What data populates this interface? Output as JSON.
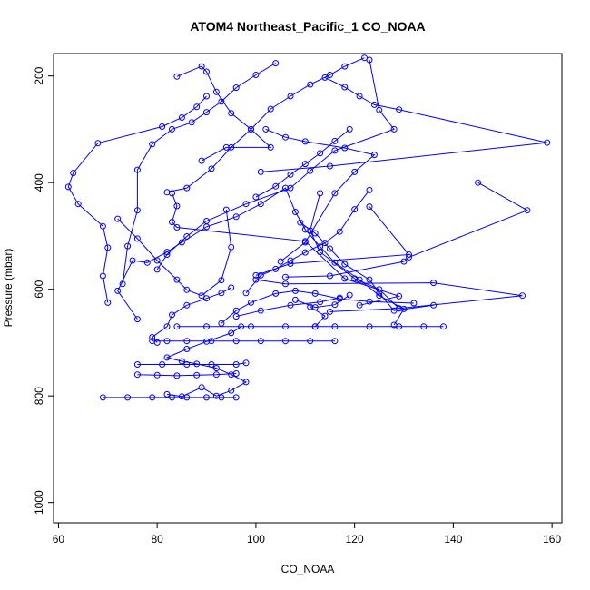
{
  "chart_data": {
    "type": "line",
    "title": "ATOM4 Northeast_Pacific_1 CO_NOAA",
    "xlabel": "CO_NOAA",
    "ylabel": "Pressure (mbar)",
    "xlim": [
      59,
      162
    ],
    "ylim": [
      1038,
      158
    ],
    "y_reversed": true,
    "xticks": [
      60,
      80,
      100,
      120,
      140,
      160
    ],
    "yticks": [
      200,
      400,
      600,
      800,
      1000
    ],
    "grid": false,
    "color": "#0000ff",
    "series": [
      {
        "points": [
          [
            69,
            803
          ],
          [
            74,
            803
          ],
          [
            79,
            803
          ],
          [
            83,
            803
          ],
          [
            86,
            803
          ],
          [
            90,
            803
          ],
          [
            93,
            803
          ],
          [
            96,
            803
          ]
        ]
      },
      {
        "points": [
          [
            82,
            797
          ],
          [
            85,
            801
          ],
          [
            89,
            784
          ],
          [
            92,
            800
          ],
          [
            95,
            790
          ],
          [
            98,
            774
          ],
          [
            95,
            760
          ],
          [
            92,
            748
          ],
          [
            88,
            740
          ],
          [
            85,
            735
          ],
          [
            82,
            728
          ],
          [
            86,
            712
          ],
          [
            90,
            698
          ],
          [
            95,
            682
          ],
          [
            97,
            670
          ]
        ]
      },
      {
        "points": [
          [
            76,
            760
          ],
          [
            80,
            761
          ],
          [
            84,
            762
          ],
          [
            88,
            761
          ],
          [
            92,
            760
          ],
          [
            96,
            758
          ]
        ]
      },
      {
        "points": [
          [
            76,
            741
          ],
          [
            81,
            741
          ],
          [
            86,
            741
          ],
          [
            91,
            741
          ],
          [
            96,
            741
          ],
          [
            98,
            738
          ]
        ]
      },
      {
        "points": [
          [
            79,
            697
          ],
          [
            82,
            697
          ],
          [
            86,
            697
          ],
          [
            91,
            697
          ],
          [
            96,
            697
          ],
          [
            101,
            697
          ],
          [
            106,
            697
          ],
          [
            111,
            697
          ],
          [
            116,
            697
          ]
        ]
      },
      {
        "points": [
          [
            84,
            670
          ],
          [
            90,
            670
          ],
          [
            99,
            670
          ],
          [
            106,
            670
          ],
          [
            112,
            670
          ],
          [
            116,
            670
          ],
          [
            123,
            670
          ],
          [
            129,
            670
          ],
          [
            134,
            670
          ],
          [
            138,
            670
          ]
        ]
      },
      {
        "points": [
          [
            80,
            700
          ],
          [
            79,
            690
          ],
          [
            82,
            670
          ],
          [
            83,
            648
          ],
          [
            86,
            630
          ],
          [
            90,
            617
          ],
          [
            93,
            607
          ],
          [
            95,
            597
          ]
        ]
      },
      {
        "points": [
          [
            70,
            625
          ],
          [
            69,
            575
          ],
          [
            70,
            522
          ],
          [
            69,
            482
          ],
          [
            64,
            440
          ],
          [
            62,
            408
          ],
          [
            63,
            382
          ],
          [
            68,
            326
          ],
          [
            81,
            295
          ],
          [
            85,
            278
          ],
          [
            88,
            258
          ],
          [
            90,
            238
          ]
        ]
      },
      {
        "points": [
          [
            73,
            590
          ],
          [
            74,
            519
          ],
          [
            76,
            452
          ],
          [
            76,
            376
          ],
          [
            79,
            328
          ],
          [
            83,
            300
          ],
          [
            87,
            287
          ],
          [
            90,
            268
          ],
          [
            93,
            248
          ],
          [
            96,
            222
          ],
          [
            100,
            198
          ],
          [
            104,
            176
          ]
        ]
      },
      {
        "points": [
          [
            76,
            656
          ],
          [
            72,
            603
          ],
          [
            75,
            546
          ],
          [
            78,
            550
          ],
          [
            82,
            530
          ],
          [
            85,
            512
          ],
          [
            90,
            483
          ],
          [
            96,
            464
          ],
          [
            101,
            440
          ],
          [
            106,
            410
          ],
          [
            108,
            455
          ],
          [
            110,
            488
          ],
          [
            113,
            520
          ],
          [
            116,
            550
          ],
          [
            121,
            582
          ],
          [
            125,
            612
          ],
          [
            130,
            637
          ],
          [
            128,
            667
          ]
        ]
      },
      {
        "points": [
          [
            94,
            451
          ],
          [
            95,
            521
          ],
          [
            93,
            583
          ],
          [
            89,
            612
          ],
          [
            86,
            601
          ],
          [
            84,
            582
          ],
          [
            80,
            546
          ],
          [
            76,
            505
          ],
          [
            72,
            468
          ]
        ]
      },
      {
        "points": [
          [
            83,
            420
          ],
          [
            84,
            444
          ],
          [
            83,
            474
          ],
          [
            84,
            484
          ],
          [
            110,
            510
          ],
          [
            118,
            580
          ],
          [
            129,
            613
          ],
          [
            121,
            630
          ]
        ]
      },
      {
        "points": [
          [
            82,
            418
          ],
          [
            86,
            410
          ],
          [
            91,
            374
          ],
          [
            95,
            334
          ],
          [
            99,
            300
          ],
          [
            103,
            262
          ],
          [
            107,
            238
          ],
          [
            111,
            216
          ],
          [
            115,
            198
          ],
          [
            118,
            182
          ],
          [
            122,
            166
          ]
        ]
      },
      {
        "points": [
          [
            84,
            201
          ],
          [
            89,
            182
          ],
          [
            90,
            192
          ],
          [
            92,
            230
          ],
          [
            95,
            270
          ],
          [
            99,
            300
          ],
          [
            103,
            334
          ],
          [
            94,
            334
          ],
          [
            89,
            359
          ]
        ]
      },
      {
        "points": [
          [
            98,
            607
          ],
          [
            101,
            574
          ],
          [
            104,
            562
          ],
          [
            107,
            546
          ],
          [
            110,
            531
          ],
          [
            114,
            513
          ],
          [
            117,
            492
          ],
          [
            120,
            450
          ],
          [
            123,
            414
          ]
        ]
      },
      {
        "points": [
          [
            105,
            548
          ],
          [
            110,
            512
          ],
          [
            116,
            420
          ],
          [
            120,
            380
          ],
          [
            124,
            348
          ],
          [
            118,
            335
          ],
          [
            110,
            323
          ],
          [
            106,
            315
          ],
          [
            102,
            300
          ]
        ]
      },
      {
        "points": [
          [
            101,
            380
          ],
          [
            115,
            369
          ],
          [
            159,
            325
          ],
          [
            129,
            263
          ],
          [
            124,
            254
          ],
          [
            121,
            238
          ],
          [
            118,
            221
          ],
          [
            114,
            203
          ]
        ]
      },
      {
        "points": [
          [
            100,
            427
          ],
          [
            104,
            407
          ],
          [
            107,
            385
          ],
          [
            110,
            365
          ],
          [
            113,
            345
          ],
          [
            116,
            322
          ],
          [
            119,
            300
          ]
        ]
      },
      {
        "points": [
          [
            109,
            475
          ],
          [
            112,
            495
          ],
          [
            115,
            524
          ],
          [
            118,
            553
          ],
          [
            123,
            582
          ],
          [
            125,
            607
          ],
          [
            128,
            640
          ],
          [
            136,
            630
          ]
        ]
      },
      {
        "points": [
          [
            100,
            582
          ],
          [
            106,
            590
          ],
          [
            136,
            588
          ],
          [
            154,
            612
          ],
          [
            129,
            636
          ],
          [
            115,
            642
          ]
        ]
      },
      {
        "points": [
          [
            145,
            400
          ],
          [
            155,
            452
          ],
          [
            131,
            540
          ],
          [
            130,
            548
          ],
          [
            115,
            575
          ],
          [
            106,
            577
          ]
        ]
      },
      {
        "points": [
          [
            123,
            445
          ],
          [
            131,
            535
          ],
          [
            107,
            552
          ],
          [
            100,
            574
          ]
        ]
      },
      {
        "points": [
          [
            113,
            420
          ],
          [
            111,
            490
          ],
          [
            113,
            530
          ],
          [
            120,
            580
          ],
          [
            125,
            600
          ],
          [
            129,
            636
          ]
        ]
      },
      {
        "points": [
          [
            123,
            170
          ],
          [
            125,
            264
          ],
          [
            128,
            300
          ],
          [
            116,
            340
          ],
          [
            111,
            378
          ],
          [
            107,
            410
          ],
          [
            98,
            440
          ],
          [
            90,
            472
          ],
          [
            86,
            501
          ],
          [
            82,
            535
          ],
          [
            80,
            563
          ]
        ]
      },
      {
        "points": [
          [
            93,
            664
          ],
          [
            96,
            640
          ],
          [
            99,
            625
          ],
          [
            104,
            608
          ],
          [
            108,
            603
          ],
          [
            112,
            608
          ],
          [
            117,
            618
          ],
          [
            123,
            623
          ],
          [
            132,
            626
          ]
        ]
      },
      {
        "points": [
          [
            96,
            651
          ],
          [
            101,
            640
          ],
          [
            107,
            630
          ],
          [
            113,
            624
          ],
          [
            117,
            616
          ]
        ]
      },
      {
        "points": [
          [
            111,
            633
          ],
          [
            114,
            650
          ],
          [
            112,
            670
          ]
        ]
      },
      {
        "points": [
          [
            108,
            620
          ],
          [
            112,
            634
          ],
          [
            116,
            629
          ],
          [
            119,
            611
          ]
        ]
      }
    ]
  }
}
